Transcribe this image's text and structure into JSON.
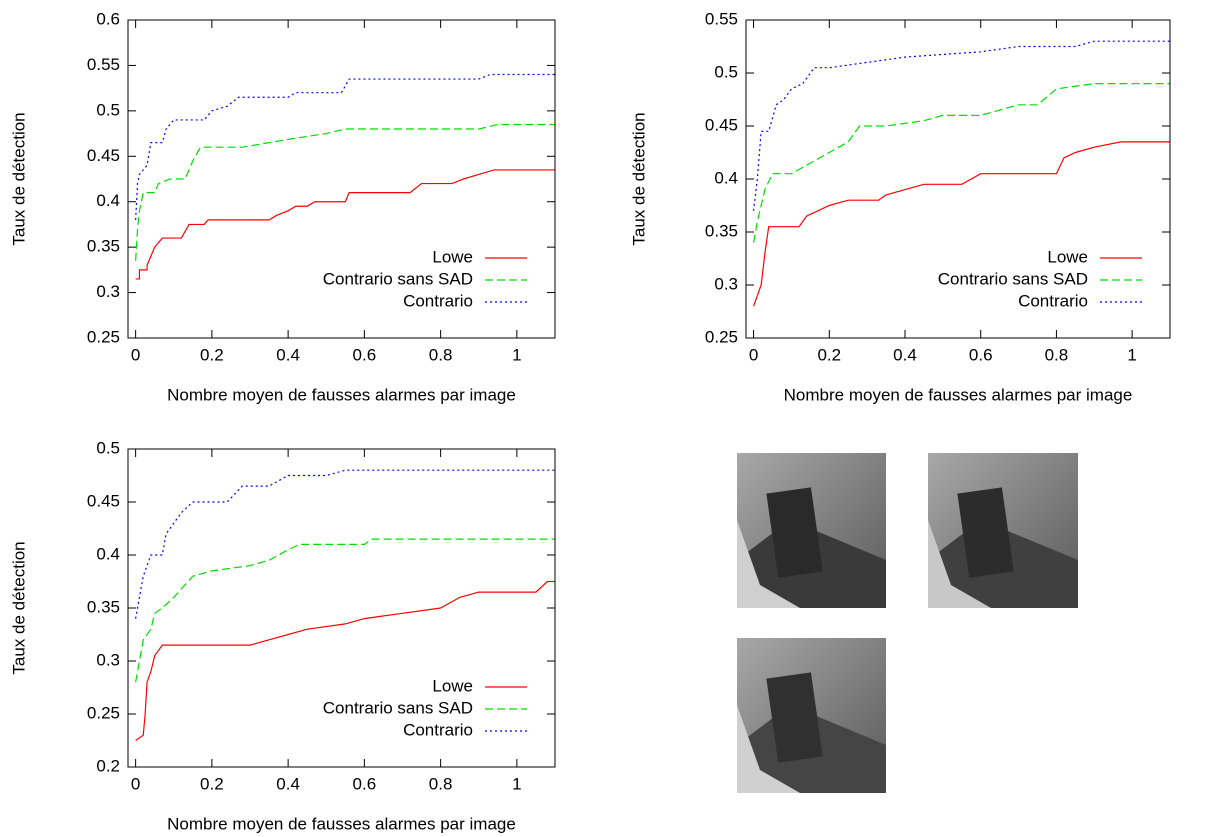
{
  "chart_data": [
    {
      "type": "line",
      "xlabel": "Nombre moyen de fausses alarmes par image",
      "ylabel": "Taux de détection",
      "xlim": [
        -0.02,
        1.1
      ],
      "xticks": [
        0,
        0.2,
        0.4,
        0.6,
        0.8,
        1
      ],
      "ylim": [
        0.25,
        0.6
      ],
      "yticks": [
        0.25,
        0.3,
        0.35,
        0.4,
        0.45,
        0.5,
        0.55,
        0.6
      ],
      "legend": "bottom right",
      "series": [
        {
          "name": "Lowe",
          "color": "#ff0000",
          "dash": "solid",
          "x": [
            0,
            0.01,
            0.01,
            0.03,
            0.03,
            0.04,
            0.05,
            0.06,
            0.07,
            0.12,
            0.14,
            0.18,
            0.19,
            0.35,
            0.37,
            0.4,
            0.42,
            0.45,
            0.47,
            0.55,
            0.56,
            0.72,
            0.75,
            0.83,
            0.86,
            0.9,
            0.94,
            1.1
          ],
          "values": [
            0.315,
            0.315,
            0.325,
            0.325,
            0.33,
            0.34,
            0.35,
            0.355,
            0.36,
            0.36,
            0.375,
            0.375,
            0.38,
            0.38,
            0.385,
            0.39,
            0.395,
            0.395,
            0.4,
            0.4,
            0.41,
            0.41,
            0.42,
            0.42,
            0.425,
            0.43,
            0.435,
            0.435
          ]
        },
        {
          "name": "Contrario sans SAD",
          "color": "#00dd00",
          "dash": "dashed",
          "x": [
            0,
            0.005,
            0.01,
            0.02,
            0.05,
            0.06,
            0.09,
            0.13,
            0.15,
            0.17,
            0.28,
            0.35,
            0.42,
            0.5,
            0.55,
            0.9,
            0.95,
            1.1
          ],
          "values": [
            0.335,
            0.37,
            0.39,
            0.41,
            0.41,
            0.42,
            0.425,
            0.425,
            0.445,
            0.46,
            0.46,
            0.465,
            0.47,
            0.475,
            0.48,
            0.48,
            0.485,
            0.485
          ]
        },
        {
          "name": "Contrario",
          "color": "#0000ff",
          "dash": "dotted",
          "x": [
            0,
            0.005,
            0.01,
            0.03,
            0.04,
            0.07,
            0.08,
            0.1,
            0.18,
            0.2,
            0.24,
            0.27,
            0.4,
            0.42,
            0.54,
            0.56,
            0.9,
            0.93,
            1.1
          ],
          "values": [
            0.38,
            0.42,
            0.43,
            0.44,
            0.465,
            0.465,
            0.48,
            0.49,
            0.49,
            0.5,
            0.505,
            0.515,
            0.515,
            0.52,
            0.52,
            0.535,
            0.535,
            0.54,
            0.54
          ]
        }
      ]
    },
    {
      "type": "line",
      "xlabel": "Nombre moyen de fausses alarmes par image",
      "ylabel": "Taux de détection",
      "xlim": [
        -0.02,
        1.1
      ],
      "xticks": [
        0,
        0.2,
        0.4,
        0.6,
        0.8,
        1
      ],
      "ylim": [
        0.25,
        0.55
      ],
      "yticks": [
        0.25,
        0.3,
        0.35,
        0.4,
        0.45,
        0.5,
        0.55
      ],
      "legend": "bottom right",
      "series": [
        {
          "name": "Lowe",
          "color": "#ff0000",
          "dash": "solid",
          "x": [
            0,
            0.01,
            0.02,
            0.03,
            0.04,
            0.12,
            0.14,
            0.17,
            0.2,
            0.25,
            0.33,
            0.35,
            0.4,
            0.45,
            0.55,
            0.6,
            0.8,
            0.82,
            0.85,
            0.9,
            0.97,
            1.1
          ],
          "values": [
            0.28,
            0.29,
            0.3,
            0.33,
            0.355,
            0.355,
            0.365,
            0.37,
            0.375,
            0.38,
            0.38,
            0.385,
            0.39,
            0.395,
            0.395,
            0.405,
            0.405,
            0.42,
            0.425,
            0.43,
            0.435,
            0.435
          ]
        },
        {
          "name": "Contrario sans SAD",
          "color": "#00dd00",
          "dash": "dashed",
          "x": [
            0,
            0.01,
            0.03,
            0.05,
            0.1,
            0.15,
            0.2,
            0.25,
            0.28,
            0.35,
            0.45,
            0.5,
            0.6,
            0.7,
            0.75,
            0.8,
            0.9,
            1.1
          ],
          "values": [
            0.34,
            0.36,
            0.39,
            0.405,
            0.405,
            0.415,
            0.425,
            0.435,
            0.45,
            0.45,
            0.455,
            0.46,
            0.46,
            0.47,
            0.47,
            0.485,
            0.49,
            0.49
          ]
        },
        {
          "name": "Contrario",
          "color": "#0000ff",
          "dash": "dotted",
          "x": [
            0,
            0.01,
            0.02,
            0.04,
            0.06,
            0.08,
            0.1,
            0.13,
            0.16,
            0.2,
            0.3,
            0.4,
            0.6,
            0.7,
            0.85,
            0.9,
            1.1
          ],
          "values": [
            0.37,
            0.4,
            0.445,
            0.445,
            0.47,
            0.475,
            0.485,
            0.49,
            0.505,
            0.505,
            0.51,
            0.515,
            0.52,
            0.525,
            0.525,
            0.53,
            0.53
          ]
        }
      ]
    },
    {
      "type": "line",
      "xlabel": "Nombre moyen de fausses alarmes par image",
      "ylabel": "Taux de détection",
      "xlim": [
        -0.02,
        1.1
      ],
      "xticks": [
        0,
        0.2,
        0.4,
        0.6,
        0.8,
        1
      ],
      "ylim": [
        0.2,
        0.5
      ],
      "yticks": [
        0.2,
        0.25,
        0.3,
        0.35,
        0.4,
        0.45,
        0.5
      ],
      "legend": "bottom right",
      "series": [
        {
          "name": "Lowe",
          "color": "#ff0000",
          "dash": "solid",
          "x": [
            0,
            0.02,
            0.025,
            0.03,
            0.04,
            0.05,
            0.07,
            0.3,
            0.35,
            0.4,
            0.45,
            0.55,
            0.6,
            0.7,
            0.8,
            0.85,
            0.9,
            1.05,
            1.08,
            1.1
          ],
          "values": [
            0.225,
            0.23,
            0.25,
            0.28,
            0.29,
            0.305,
            0.315,
            0.315,
            0.32,
            0.325,
            0.33,
            0.335,
            0.34,
            0.345,
            0.35,
            0.36,
            0.365,
            0.365,
            0.375,
            0.375
          ]
        },
        {
          "name": "Contrario sans SAD",
          "color": "#00dd00",
          "dash": "dashed",
          "x": [
            0,
            0.01,
            0.02,
            0.04,
            0.05,
            0.07,
            0.1,
            0.15,
            0.2,
            0.3,
            0.35,
            0.4,
            0.43,
            0.6,
            0.62,
            1.1
          ],
          "values": [
            0.28,
            0.3,
            0.32,
            0.33,
            0.345,
            0.35,
            0.36,
            0.38,
            0.385,
            0.39,
            0.395,
            0.405,
            0.41,
            0.41,
            0.415,
            0.415
          ]
        },
        {
          "name": "Contrario",
          "color": "#0000ff",
          "dash": "dotted",
          "x": [
            0,
            0.01,
            0.02,
            0.04,
            0.07,
            0.08,
            0.1,
            0.12,
            0.15,
            0.24,
            0.28,
            0.35,
            0.4,
            0.5,
            0.55,
            1.1
          ],
          "values": [
            0.34,
            0.36,
            0.38,
            0.4,
            0.4,
            0.42,
            0.43,
            0.44,
            0.45,
            0.45,
            0.465,
            0.465,
            0.475,
            0.475,
            0.48,
            0.48
          ]
        }
      ]
    }
  ]
}
